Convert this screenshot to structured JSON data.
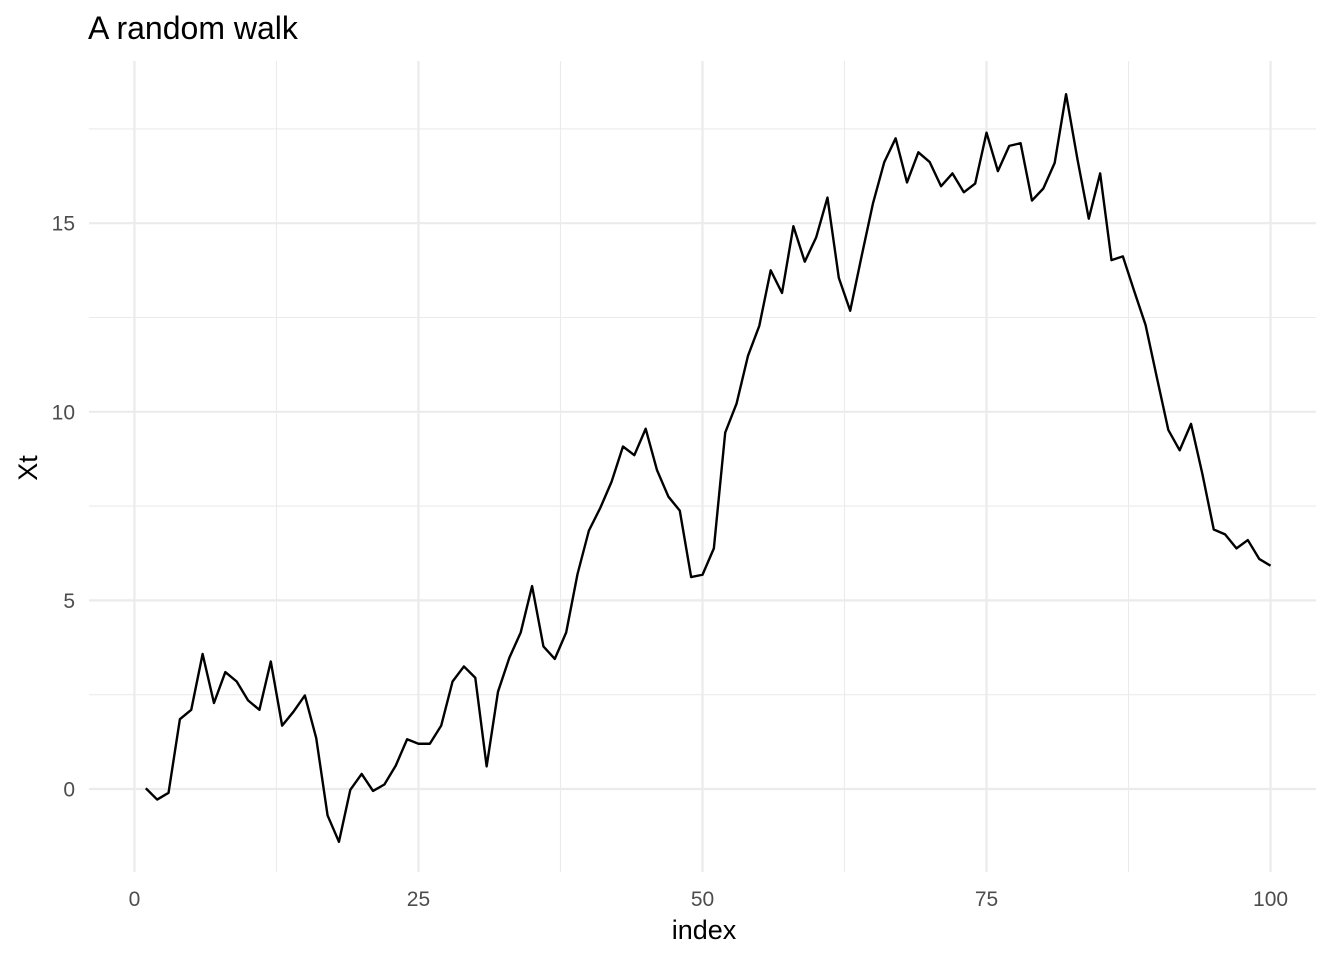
{
  "chart_data": {
    "type": "line",
    "title": "A random walk",
    "xlabel": "index",
    "ylabel": "Xt",
    "xlim": [
      -4,
      104
    ],
    "ylim": [
      -2.2,
      19.3
    ],
    "x_ticks": [
      0,
      25,
      50,
      75,
      100
    ],
    "x_tick_labels": [
      "0",
      "25",
      "50",
      "75",
      "100"
    ],
    "x_minor_ticks": [
      12.5,
      37.5,
      62.5,
      87.5
    ],
    "y_ticks": [
      0,
      5,
      10,
      15
    ],
    "y_tick_labels": [
      "0",
      "5",
      "10",
      "15"
    ],
    "y_minor_ticks": [
      2.5,
      7.5,
      12.5,
      17.5
    ],
    "grid": true,
    "line_color": "#000000",
    "grid_color": "#ebebeb",
    "series": [
      {
        "x": [
          1,
          2,
          3,
          4,
          5,
          6,
          7,
          8,
          9,
          10,
          11,
          12,
          13,
          14,
          15,
          16,
          17,
          18,
          19,
          20,
          21,
          22,
          23,
          24,
          25,
          26,
          27,
          28,
          29,
          30,
          31,
          32,
          33,
          34,
          35,
          36,
          37,
          38,
          39,
          40,
          41,
          42,
          43,
          44,
          45,
          46,
          47,
          48,
          49,
          50,
          51,
          52,
          53,
          54,
          55,
          56,
          57,
          58,
          59,
          60,
          61,
          62,
          63,
          64,
          65,
          66,
          67,
          68,
          69,
          70,
          71,
          72,
          73,
          74,
          75,
          76,
          77,
          78,
          79,
          80,
          81,
          82,
          83,
          84,
          85,
          86,
          87,
          88,
          89,
          90,
          91,
          92,
          93,
          94,
          95,
          96,
          97,
          98,
          99,
          100
        ],
        "values": [
          0.02,
          -0.28,
          -0.1,
          1.85,
          2.1,
          3.58,
          2.28,
          3.1,
          2.85,
          2.35,
          2.1,
          3.38,
          1.68,
          2.05,
          2.48,
          1.35,
          -0.7,
          -1.4,
          -0.02,
          0.4,
          -0.05,
          0.12,
          0.62,
          1.32,
          1.2,
          1.2,
          1.68,
          2.85,
          3.25,
          2.95,
          0.6,
          2.58,
          3.48,
          4.15,
          5.38,
          3.78,
          3.45,
          4.15,
          5.7,
          6.85,
          7.45,
          8.15,
          9.08,
          8.85,
          9.55,
          8.45,
          7.75,
          7.38,
          5.62,
          5.68,
          6.38,
          9.45,
          10.22,
          11.48,
          12.28,
          13.75,
          13.15,
          14.92,
          13.98,
          14.62,
          15.68,
          13.55,
          12.68,
          14.12,
          15.52,
          16.62,
          17.25,
          16.08,
          16.88,
          16.62,
          15.98,
          16.32,
          15.82,
          16.05,
          17.4,
          16.38,
          17.05,
          17.12,
          15.6,
          15.92,
          16.6,
          18.42,
          16.7,
          15.12,
          16.32,
          14.02,
          14.12,
          13.2,
          12.3,
          10.9,
          9.52,
          8.98,
          9.68,
          8.35,
          6.88,
          6.75,
          6.38,
          6.6,
          6.1,
          5.92
        ]
      }
    ]
  }
}
